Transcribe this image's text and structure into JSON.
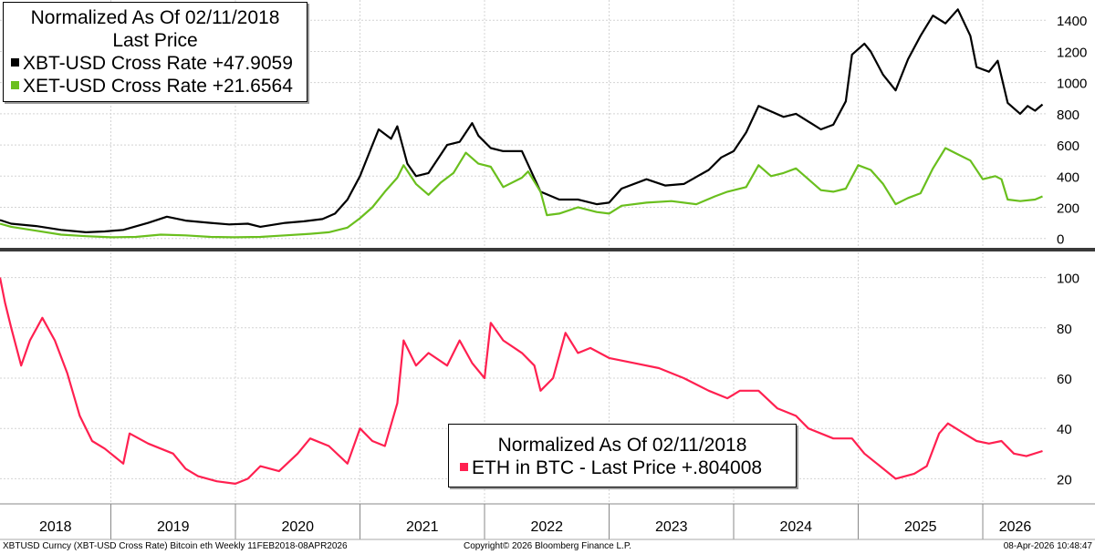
{
  "chart_data": [
    {
      "type": "line",
      "title": "Normalized As Of 02/11/2018",
      "subtitle": "Last Price",
      "ylim": [
        -60,
        1530
      ],
      "y_ticks": [
        0,
        200,
        400,
        600,
        800,
        1000,
        1200,
        1400
      ],
      "y_tick_labels": [
        "0",
        "200",
        "400",
        "600",
        "800",
        "1000",
        "1200",
        "1400"
      ],
      "series": [
        {
          "name": "XBT-USD Cross Rate",
          "legend_label": "XBT-USD Cross Rate +47.9059",
          "color": "#000000",
          "points": [
            [
              2018.11,
              118
            ],
            [
              2018.2,
              95
            ],
            [
              2018.4,
              80
            ],
            [
              2018.6,
              55
            ],
            [
              2018.8,
              40
            ],
            [
              2018.95,
              45
            ],
            [
              2019.1,
              55
            ],
            [
              2019.3,
              100
            ],
            [
              2019.45,
              140
            ],
            [
              2019.6,
              115
            ],
            [
              2019.8,
              100
            ],
            [
              2019.95,
              90
            ],
            [
              2020.1,
              95
            ],
            [
              2020.2,
              75
            ],
            [
              2020.4,
              100
            ],
            [
              2020.55,
              110
            ],
            [
              2020.7,
              125
            ],
            [
              2020.8,
              160
            ],
            [
              2020.9,
              250
            ],
            [
              2021.0,
              400
            ],
            [
              2021.1,
              600
            ],
            [
              2021.15,
              700
            ],
            [
              2021.25,
              640
            ],
            [
              2021.3,
              720
            ],
            [
              2021.38,
              480
            ],
            [
              2021.45,
              400
            ],
            [
              2021.55,
              420
            ],
            [
              2021.7,
              600
            ],
            [
              2021.8,
              620
            ],
            [
              2021.9,
              740
            ],
            [
              2021.95,
              660
            ],
            [
              2022.05,
              580
            ],
            [
              2022.15,
              560
            ],
            [
              2022.3,
              560
            ],
            [
              2022.45,
              300
            ],
            [
              2022.6,
              250
            ],
            [
              2022.75,
              250
            ],
            [
              2022.9,
              220
            ],
            [
              2023.0,
              230
            ],
            [
              2023.1,
              320
            ],
            [
              2023.3,
              380
            ],
            [
              2023.45,
              340
            ],
            [
              2023.6,
              350
            ],
            [
              2023.8,
              440
            ],
            [
              2023.9,
              520
            ],
            [
              2024.0,
              560
            ],
            [
              2024.1,
              680
            ],
            [
              2024.2,
              850
            ],
            [
              2024.4,
              780
            ],
            [
              2024.5,
              800
            ],
            [
              2024.6,
              750
            ],
            [
              2024.7,
              700
            ],
            [
              2024.8,
              730
            ],
            [
              2024.9,
              880
            ],
            [
              2024.95,
              1180
            ],
            [
              2025.05,
              1250
            ],
            [
              2025.1,
              1200
            ],
            [
              2025.2,
              1050
            ],
            [
              2025.3,
              950
            ],
            [
              2025.4,
              1150
            ],
            [
              2025.5,
              1300
            ],
            [
              2025.6,
              1430
            ],
            [
              2025.7,
              1380
            ],
            [
              2025.8,
              1470
            ],
            [
              2025.9,
              1300
            ],
            [
              2025.95,
              1100
            ],
            [
              2026.05,
              1070
            ],
            [
              2026.12,
              1140
            ],
            [
              2026.2,
              870
            ],
            [
              2026.3,
              800
            ],
            [
              2026.36,
              850
            ],
            [
              2026.42,
              820
            ],
            [
              2026.48,
              860
            ]
          ]
        },
        {
          "name": "XET-USD Cross Rate",
          "legend_label": "XET-USD Cross Rate +21.6564",
          "color": "#6abf1e",
          "points": [
            [
              2018.11,
              95
            ],
            [
              2018.2,
              75
            ],
            [
              2018.4,
              50
            ],
            [
              2018.6,
              25
            ],
            [
              2018.8,
              15
            ],
            [
              2019.0,
              8
            ],
            [
              2019.2,
              10
            ],
            [
              2019.4,
              25
            ],
            [
              2019.6,
              20
            ],
            [
              2019.8,
              10
            ],
            [
              2020.0,
              8
            ],
            [
              2020.2,
              10
            ],
            [
              2020.4,
              20
            ],
            [
              2020.6,
              30
            ],
            [
              2020.75,
              40
            ],
            [
              2020.9,
              70
            ],
            [
              2021.0,
              130
            ],
            [
              2021.1,
              200
            ],
            [
              2021.2,
              300
            ],
            [
              2021.3,
              390
            ],
            [
              2021.35,
              470
            ],
            [
              2021.45,
              350
            ],
            [
              2021.55,
              280
            ],
            [
              2021.65,
              360
            ],
            [
              2021.75,
              420
            ],
            [
              2021.85,
              550
            ],
            [
              2021.95,
              480
            ],
            [
              2022.05,
              460
            ],
            [
              2022.15,
              330
            ],
            [
              2022.3,
              390
            ],
            [
              2022.35,
              430
            ],
            [
              2022.45,
              300
            ],
            [
              2022.5,
              150
            ],
            [
              2022.6,
              160
            ],
            [
              2022.75,
              200
            ],
            [
              2022.9,
              170
            ],
            [
              2023.0,
              160
            ],
            [
              2023.1,
              210
            ],
            [
              2023.3,
              230
            ],
            [
              2023.5,
              240
            ],
            [
              2023.7,
              220
            ],
            [
              2023.85,
              270
            ],
            [
              2023.95,
              300
            ],
            [
              2024.1,
              330
            ],
            [
              2024.2,
              470
            ],
            [
              2024.3,
              400
            ],
            [
              2024.4,
              420
            ],
            [
              2024.5,
              450
            ],
            [
              2024.6,
              380
            ],
            [
              2024.7,
              310
            ],
            [
              2024.8,
              300
            ],
            [
              2024.9,
              320
            ],
            [
              2025.0,
              470
            ],
            [
              2025.1,
              440
            ],
            [
              2025.2,
              350
            ],
            [
              2025.3,
              220
            ],
            [
              2025.4,
              260
            ],
            [
              2025.5,
              290
            ],
            [
              2025.6,
              450
            ],
            [
              2025.7,
              580
            ],
            [
              2025.8,
              540
            ],
            [
              2025.9,
              500
            ],
            [
              2026.0,
              380
            ],
            [
              2026.1,
              400
            ],
            [
              2026.15,
              380
            ],
            [
              2026.2,
              250
            ],
            [
              2026.3,
              240
            ],
            [
              2026.42,
              250
            ],
            [
              2026.48,
              270
            ]
          ]
        }
      ]
    },
    {
      "type": "line",
      "title": "Normalized As Of 02/11/2018",
      "ylim": [
        10,
        110
      ],
      "y_ticks": [
        20,
        40,
        60,
        80,
        100
      ],
      "y_tick_labels": [
        "20",
        "40",
        "60",
        "80",
        "100"
      ],
      "series": [
        {
          "name": "ETH in BTC",
          "legend_label": "ETH in BTC - Last Price  +.804008",
          "color": "#ff2050",
          "points": [
            [
              2018.11,
              100
            ],
            [
              2018.15,
              90
            ],
            [
              2018.2,
              80
            ],
            [
              2018.28,
              65
            ],
            [
              2018.35,
              75
            ],
            [
              2018.45,
              84
            ],
            [
              2018.55,
              75
            ],
            [
              2018.65,
              62
            ],
            [
              2018.75,
              45
            ],
            [
              2018.85,
              35
            ],
            [
              2018.95,
              32
            ],
            [
              2019.1,
              26
            ],
            [
              2019.15,
              38
            ],
            [
              2019.3,
              34
            ],
            [
              2019.5,
              30
            ],
            [
              2019.6,
              24
            ],
            [
              2019.7,
              21
            ],
            [
              2019.85,
              19
            ],
            [
              2020.0,
              18
            ],
            [
              2020.1,
              20
            ],
            [
              2020.2,
              25
            ],
            [
              2020.35,
              23
            ],
            [
              2020.5,
              30
            ],
            [
              2020.6,
              36
            ],
            [
              2020.75,
              33
            ],
            [
              2020.9,
              26
            ],
            [
              2021.0,
              40
            ],
            [
              2021.1,
              35
            ],
            [
              2021.2,
              33
            ],
            [
              2021.3,
              50
            ],
            [
              2021.35,
              75
            ],
            [
              2021.45,
              65
            ],
            [
              2021.55,
              70
            ],
            [
              2021.7,
              65
            ],
            [
              2021.8,
              75
            ],
            [
              2021.9,
              66
            ],
            [
              2022.0,
              60
            ],
            [
              2022.05,
              82
            ],
            [
              2022.15,
              75
            ],
            [
              2022.3,
              70
            ],
            [
              2022.4,
              65
            ],
            [
              2022.45,
              55
            ],
            [
              2022.55,
              60
            ],
            [
              2022.65,
              78
            ],
            [
              2022.75,
              70
            ],
            [
              2022.85,
              72
            ],
            [
              2023.0,
              68
            ],
            [
              2023.2,
              66
            ],
            [
              2023.4,
              64
            ],
            [
              2023.6,
              60
            ],
            [
              2023.8,
              55
            ],
            [
              2023.95,
              52
            ],
            [
              2024.05,
              55
            ],
            [
              2024.2,
              55
            ],
            [
              2024.35,
              48
            ],
            [
              2024.5,
              45
            ],
            [
              2024.6,
              40
            ],
            [
              2024.8,
              36
            ],
            [
              2024.95,
              36
            ],
            [
              2025.05,
              30
            ],
            [
              2025.15,
              26
            ],
            [
              2025.3,
              20
            ],
            [
              2025.45,
              22
            ],
            [
              2025.55,
              25
            ],
            [
              2025.65,
              38
            ],
            [
              2025.72,
              42
            ],
            [
              2025.85,
              38
            ],
            [
              2025.95,
              35
            ],
            [
              2026.05,
              34
            ],
            [
              2026.15,
              35
            ],
            [
              2026.25,
              30
            ],
            [
              2026.35,
              29
            ],
            [
              2026.48,
              31
            ]
          ]
        }
      ]
    }
  ],
  "x_axis": {
    "range": [
      2018.11,
      2026.52
    ],
    "year_labels": [
      "2018",
      "2019",
      "2020",
      "2021",
      "2022",
      "2023",
      "2024",
      "2025",
      "2026"
    ]
  },
  "footer": {
    "left": "XBTUSD Curncy (XBT-USD Cross Rate) Bitcoin eth Weekly 11FEB2018-08APR2026",
    "center": "Copyright© 2026 Bloomberg Finance L.P.",
    "right": "08-Apr-2026 10:48:47"
  },
  "colors": {
    "btc": "#000000",
    "eth": "#6abf1e",
    "ratio": "#ff2050"
  }
}
